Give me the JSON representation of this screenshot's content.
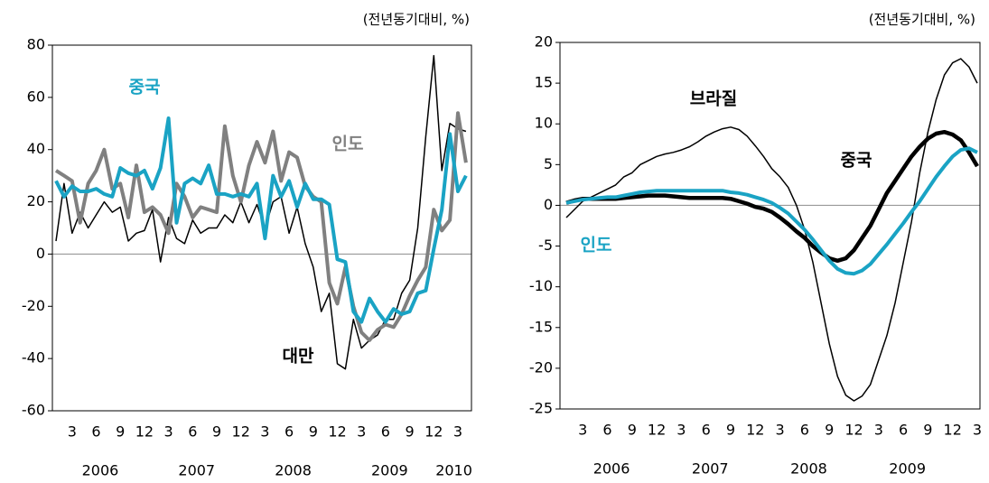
{
  "chart_data": [
    {
      "type": "line",
      "subtitle": "(전년동기대비, %)",
      "categories": [
        null,
        null,
        "3",
        null,
        null,
        "6",
        null,
        null,
        "9",
        null,
        null,
        "12",
        null,
        null,
        "3",
        null,
        null,
        "6",
        null,
        null,
        "9",
        null,
        null,
        "12",
        null,
        null,
        "3",
        null,
        null,
        "6",
        null,
        null,
        "9",
        null,
        null,
        "12",
        null,
        null,
        "3",
        null,
        null,
        "6",
        null,
        null,
        "9",
        null,
        null,
        "12",
        null,
        null,
        "3",
        null
      ],
      "years": [
        "2006",
        "2007",
        "2008",
        "2009",
        "2010"
      ],
      "ylim": [
        -60,
        80
      ],
      "yticks": [
        -60,
        -40,
        -20,
        0,
        20,
        40,
        60,
        80
      ],
      "series": [
        {
          "name": "대만",
          "color": "#000000",
          "width": 1.5,
          "values": [
            5,
            27,
            8,
            16,
            10,
            15,
            20,
            16,
            18,
            5,
            8,
            9,
            17,
            -3,
            14,
            6,
            4,
            13,
            8,
            10,
            10,
            15,
            12,
            20,
            12,
            19,
            10,
            20,
            22,
            8,
            18,
            4,
            -5,
            -22,
            -15,
            -42,
            -44,
            -25,
            -36,
            -33,
            -31,
            -25,
            -25,
            -15,
            -10,
            10,
            45,
            76,
            32,
            50,
            48,
            47
          ]
        },
        {
          "name": "인도",
          "color": "#808080",
          "width": 4,
          "values": [
            32,
            30,
            28,
            12,
            27,
            32,
            40,
            25,
            27,
            14,
            34,
            16,
            18,
            15,
            8,
            27,
            22,
            14,
            18,
            17,
            16,
            49,
            30,
            20,
            34,
            43,
            35,
            47,
            28,
            39,
            37,
            26,
            22,
            20,
            -11,
            -19,
            -5,
            -20,
            -30,
            -33,
            -29,
            -27,
            -28,
            -23,
            -16,
            -10,
            -5,
            17,
            9,
            13,
            54,
            35
          ]
        },
        {
          "name": "중국",
          "color": "#1aa3c4",
          "width": 4,
          "values": [
            28,
            22,
            26,
            24,
            24,
            25,
            23,
            22,
            33,
            31,
            30,
            32,
            25,
            33,
            52,
            12,
            27,
            29,
            27,
            34,
            23,
            23,
            22,
            23,
            22,
            27,
            6,
            30,
            22,
            28,
            18,
            27,
            21,
            21,
            19,
            -2,
            -3,
            -22,
            -26,
            -17,
            -22,
            -26,
            -21,
            -23,
            -22,
            -15,
            -14,
            2,
            17,
            46,
            24,
            30
          ]
        }
      ]
    },
    {
      "type": "line",
      "subtitle": "(전년동기대비, %)",
      "categories": [
        null,
        null,
        "3",
        null,
        null,
        "6",
        null,
        null,
        "9",
        null,
        null,
        "12",
        null,
        null,
        "3",
        null,
        null,
        "6",
        null,
        null,
        "9",
        null,
        null,
        "12",
        null,
        null,
        "3",
        null,
        null,
        "6",
        null,
        null,
        "9",
        null,
        null,
        "12",
        null,
        null,
        "3",
        null,
        null,
        "6",
        null,
        null,
        "9",
        null,
        null,
        "12",
        null,
        null,
        "3"
      ],
      "years": [
        "2006",
        "2007",
        "2008",
        "2009"
      ],
      "ylim": [
        -25,
        20
      ],
      "yticks": [
        -25,
        -20,
        -15,
        -10,
        -5,
        0,
        5,
        10,
        15,
        20
      ],
      "series": [
        {
          "name": "브라질",
          "color": "#000000",
          "width": 1.5,
          "values": [
            -1.5,
            -0.5,
            0.5,
            1,
            1.5,
            2,
            2.5,
            3.5,
            4,
            5,
            5.5,
            6,
            6.3,
            6.5,
            6.8,
            7.2,
            7.8,
            8.5,
            9,
            9.4,
            9.6,
            9.3,
            8.5,
            7.3,
            6,
            4.5,
            3.5,
            2.2,
            0,
            -3,
            -7,
            -12,
            -17,
            -21,
            -23.3,
            -24,
            -23.4,
            -22,
            -19,
            -16,
            -12,
            -7,
            -2,
            4,
            9,
            13,
            16,
            17.5,
            18,
            17,
            15
          ]
        },
        {
          "name": "중국",
          "color": "#000000",
          "width": 4.5,
          "values": [
            0.3,
            0.6,
            0.8,
            0.8,
            0.8,
            0.8,
            0.8,
            0.9,
            1,
            1.1,
            1.2,
            1.2,
            1.2,
            1.1,
            1,
            0.9,
            0.9,
            0.9,
            0.9,
            0.9,
            0.8,
            0.5,
            0.2,
            -0.2,
            -0.4,
            -0.8,
            -1.5,
            -2.3,
            -3.2,
            -4,
            -5,
            -5.8,
            -6.5,
            -6.8,
            -6.5,
            -5.5,
            -4,
            -2.5,
            -0.5,
            1.5,
            3,
            4.5,
            6,
            7.2,
            8.2,
            8.8,
            9,
            8.7,
            8,
            6.5,
            4.8
          ]
        },
        {
          "name": "인도",
          "color": "#1aa3c4",
          "width": 4,
          "values": [
            0.3,
            0.5,
            0.7,
            0.8,
            0.9,
            1,
            1,
            1.2,
            1.4,
            1.6,
            1.7,
            1.8,
            1.8,
            1.8,
            1.8,
            1.8,
            1.8,
            1.8,
            1.8,
            1.8,
            1.6,
            1.5,
            1.3,
            1,
            0.7,
            0.3,
            -0.3,
            -1,
            -2,
            -3,
            -4.2,
            -5.5,
            -6.8,
            -7.8,
            -8.3,
            -8.4,
            -8,
            -7.2,
            -6,
            -4.8,
            -3.5,
            -2.2,
            -0.8,
            0.5,
            2,
            3.5,
            4.8,
            6,
            6.8,
            7,
            6.5
          ]
        }
      ]
    }
  ]
}
